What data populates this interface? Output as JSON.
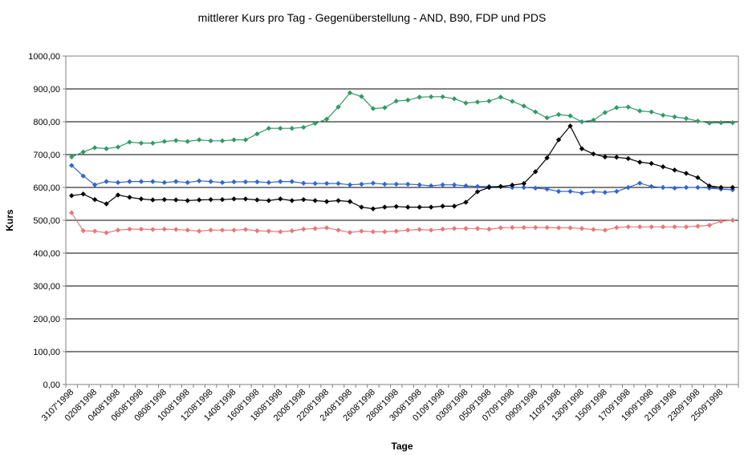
{
  "chart_data": {
    "type": "line",
    "title": "mittlerer Kurs pro Tag - Gegenüberstellung - AND, B90, FDP und PDS",
    "xlabel": "Tage",
    "ylabel": "Kurs",
    "ylim": [
      0,
      1000
    ],
    "yticks": [
      "0,00",
      "100,00",
      "200,00",
      "300,00",
      "400,00",
      "500,00",
      "600,00",
      "700,00",
      "800,00",
      "900,00",
      "1000,00"
    ],
    "grid": "horizontal",
    "legend": "none",
    "x": [
      "31071998",
      "01081998",
      "02081998",
      "03081998",
      "04081998",
      "05081998",
      "06081998",
      "07081998",
      "08081998",
      "09081998",
      "10081998",
      "11081998",
      "12081998",
      "13081998",
      "14081998",
      "15081998",
      "16081998",
      "17081998",
      "18081998",
      "19081998",
      "20081998",
      "21081998",
      "22081998",
      "23081998",
      "24081998",
      "25081998",
      "26081998",
      "27081998",
      "28081998",
      "29081998",
      "30081998",
      "31081998",
      "01091998",
      "02091998",
      "03091998",
      "04091998",
      "05091998",
      "06091998",
      "07091998",
      "08091998",
      "09091998",
      "10091998",
      "11091998",
      "12091998",
      "13091998",
      "14091998",
      "15091998",
      "16091998",
      "17091998",
      "18091998",
      "19091998",
      "20091998",
      "21091998",
      "22091998",
      "23091998",
      "24091998",
      "25091998",
      "26091998"
    ],
    "xtick_labels": [
      "3107'1998",
      "0208'1998",
      "0408'1998",
      "0608'1998",
      "0808'1998",
      "1008'1998",
      "1208'1998",
      "1408'1998",
      "1608'1998",
      "1808'1998",
      "2008'1998",
      "2208'1998",
      "2408'1998",
      "2608'1998",
      "2808'1998",
      "3008'1998",
      "0109'1998",
      "0309'1998",
      "0509'1998",
      "0709'1998",
      "0909'1998",
      "1109'1998",
      "1309'1998",
      "1509'1998",
      "1709'1998",
      "1909'1998",
      "2109'1998",
      "2309'1998",
      "2509'1998"
    ],
    "series": [
      {
        "color": "#339966",
        "values": [
          693,
          708,
          721,
          718,
          723,
          738,
          735,
          735,
          740,
          743,
          740,
          745,
          742,
          742,
          745,
          745,
          763,
          780,
          780,
          780,
          783,
          795,
          808,
          845,
          888,
          877,
          840,
          843,
          863,
          866,
          875,
          876,
          876,
          870,
          857,
          860,
          863,
          875,
          862,
          848,
          830,
          812,
          822,
          818,
          800,
          805,
          828,
          843,
          845,
          833,
          830,
          820,
          815,
          810,
          802,
          796,
          797,
          797
        ]
      },
      {
        "color": "#3366cc",
        "values": [
          667,
          635,
          608,
          618,
          615,
          618,
          618,
          618,
          615,
          618,
          615,
          620,
          618,
          615,
          617,
          617,
          617,
          615,
          618,
          618,
          613,
          612,
          612,
          612,
          608,
          610,
          613,
          610,
          610,
          610,
          608,
          605,
          608,
          608,
          605,
          603,
          603,
          603,
          600,
          600,
          598,
          595,
          588,
          588,
          583,
          587,
          585,
          588,
          600,
          613,
          603,
          600,
          598,
          600,
          600,
          598,
          595,
          593
        ]
      },
      {
        "color": "#000000",
        "values": [
          575,
          580,
          563,
          550,
          577,
          570,
          565,
          562,
          563,
          562,
          560,
          562,
          563,
          563,
          565,
          565,
          562,
          560,
          565,
          560,
          563,
          560,
          557,
          560,
          557,
          540,
          535,
          540,
          542,
          540,
          540,
          540,
          543,
          543,
          555,
          587,
          600,
          603,
          607,
          612,
          648,
          690,
          745,
          787,
          718,
          702,
          693,
          692,
          688,
          677,
          673,
          663,
          653,
          643,
          630,
          605,
          600,
          600
        ]
      },
      {
        "color": "#e87878",
        "values": [
          523,
          468,
          467,
          462,
          470,
          473,
          473,
          472,
          473,
          472,
          470,
          467,
          470,
          470,
          470,
          472,
          468,
          467,
          465,
          468,
          473,
          475,
          477,
          470,
          463,
          467,
          465,
          465,
          467,
          470,
          472,
          470,
          473,
          475,
          475,
          475,
          473,
          477,
          478,
          478,
          478,
          478,
          477,
          477,
          475,
          472,
          470,
          478,
          480,
          480,
          480,
          480,
          480,
          480,
          482,
          485,
          497,
          500
        ]
      }
    ]
  }
}
